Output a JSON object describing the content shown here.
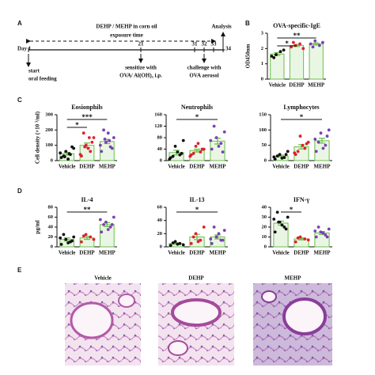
{
  "panel_labels": [
    "A",
    "B",
    "C",
    "D",
    "E"
  ],
  "panel_a": {
    "title": "DEHP / MEHP in corn oil",
    "subtitle": "exposure time",
    "end_label": "Analysis",
    "days": [
      "Day 1",
      "21",
      "31",
      "32",
      "33",
      "34"
    ],
    "steps": [
      {
        "line1": "start",
        "line2": "oral feeding"
      },
      {
        "line1": "sensitize with",
        "line2": "OVA/ Al(OH)₃ i.p."
      },
      {
        "line1": "challenge with",
        "line2": "OVA aerosol"
      }
    ]
  },
  "chart_data": [
    {
      "type": "bar",
      "title": "OVA-specific-IgE",
      "ylabel": "OD450nm",
      "categories": [
        "Vehicle",
        "DEHP",
        "MEHP"
      ],
      "values": [
        1.64,
        2.2,
        2.3
      ],
      "errors": [
        0.09,
        0.07,
        0.07
      ],
      "ylim": [
        0,
        3
      ],
      "yticks": [
        0,
        1,
        2,
        3
      ],
      "points": [
        [
          1.5,
          1.8,
          1.6,
          1.9,
          1.4
        ],
        [
          2.1,
          2.3,
          2.2,
          2.0,
          2.4
        ],
        [
          2.3,
          2.2,
          2.5,
          2.4,
          2.1
        ]
      ],
      "point_colors": [
        "#111111",
        "#e0202a",
        "#7b3fb5"
      ],
      "bar_color": "#6abf4b",
      "significance": [
        {
          "between": [
            "Vehicle",
            "MEHP"
          ],
          "label": "**"
        },
        {
          "between": [
            "Vehicle",
            "DEHP"
          ],
          "label": "*"
        }
      ]
    },
    {
      "type": "bar",
      "title": "Eosionphils",
      "ylabel": "Cell density (×10 ³/ml)",
      "categories": [
        "Vehicle",
        "DEHP",
        "MEHP"
      ],
      "values": [
        45,
        100,
        125
      ],
      "errors": [
        9,
        15,
        14
      ],
      "ylim": [
        0,
        300
      ],
      "yticks": [
        0,
        100,
        200,
        300
      ],
      "points": [
        [
          20,
          40,
          60,
          80,
          30,
          10,
          50,
          90,
          25,
          45
        ],
        [
          30,
          60,
          100,
          150,
          180,
          80,
          40,
          120,
          90,
          150
        ],
        [
          60,
          90,
          120,
          150,
          200,
          180,
          100,
          80,
          140,
          130
        ]
      ],
      "point_colors": [
        "#111111",
        "#e0202a",
        "#7b3fb5"
      ],
      "bar_color": "#6abf4b",
      "significance": [
        {
          "between": [
            "Vehicle",
            "MEHP"
          ],
          "label": "***"
        },
        {
          "between": [
            "Vehicle",
            "DEHP"
          ],
          "label": "*"
        }
      ]
    },
    {
      "type": "bar",
      "title": "Neutrophils",
      "categories": [
        "Vehicle",
        "DEHP",
        "MEHP"
      ],
      "values": [
        28,
        35,
        68
      ],
      "errors": [
        8,
        5,
        10
      ],
      "ylim": [
        0,
        160
      ],
      "yticks": [
        0,
        40,
        80,
        120,
        160
      ],
      "points": [
        [
          10,
          20,
          50,
          70,
          15,
          30,
          5,
          25
        ],
        [
          20,
          30,
          50,
          40,
          25,
          60,
          15,
          40
        ],
        [
          40,
          60,
          80,
          100,
          120,
          50,
          70,
          30
        ]
      ],
      "point_colors": [
        "#111111",
        "#e0202a",
        "#7b3fb5"
      ],
      "bar_color": "#6abf4b",
      "significance": [
        {
          "between": [
            "Vehicle",
            "MEHP"
          ],
          "label": "*"
        }
      ]
    },
    {
      "type": "bar",
      "title": "Lymphocytes",
      "categories": [
        "Vehicle",
        "DEHP",
        "MEHP"
      ],
      "values": [
        15,
        45,
        65
      ],
      "errors": [
        3,
        7,
        8
      ],
      "ylim": [
        0,
        150
      ],
      "yticks": [
        0,
        50,
        100,
        150
      ],
      "points": [
        [
          5,
          10,
          20,
          30,
          15,
          8,
          12,
          20
        ],
        [
          20,
          40,
          80,
          60,
          30,
          50,
          25,
          55
        ],
        [
          30,
          50,
          90,
          100,
          60,
          40,
          70,
          80
        ]
      ],
      "point_colors": [
        "#111111",
        "#e0202a",
        "#7b3fb5"
      ],
      "bar_color": "#6abf4b",
      "significance": [
        {
          "between": [
            "Vehicle",
            "MEHP"
          ],
          "label": "*"
        }
      ]
    },
    {
      "type": "bar",
      "title": "IL-4",
      "ylabel": "pg/ml",
      "categories": [
        "Vehicle",
        "DEHP",
        "MEHP"
      ],
      "values": [
        15,
        18,
        45
      ],
      "errors": [
        3,
        3,
        4
      ],
      "ylim": [
        0,
        80
      ],
      "yticks": [
        0,
        20,
        40,
        60,
        80
      ],
      "points": [
        [
          5,
          10,
          15,
          20,
          25,
          8,
          18,
          12
        ],
        [
          10,
          20,
          25,
          15,
          22
        ],
        [
          30,
          40,
          50,
          60,
          45,
          35,
          55,
          45
        ]
      ],
      "point_colors": [
        "#111111",
        "#e0202a",
        "#7b3fb5"
      ],
      "bar_color": "#6abf4b",
      "significance": [
        {
          "between": [
            "Vehicle",
            "MEHP"
          ],
          "label": "**"
        }
      ]
    },
    {
      "type": "bar",
      "title": "IL-13",
      "categories": [
        "Vehicle",
        "DEHP",
        "MEHP"
      ],
      "values": [
        5,
        15,
        15
      ],
      "errors": [
        1,
        4,
        3
      ],
      "ylim": [
        0,
        60
      ],
      "yticks": [
        0,
        20,
        40,
        60
      ],
      "points": [
        [
          2,
          5,
          8,
          3,
          6,
          4
        ],
        [
          5,
          10,
          20,
          30,
          15,
          8
        ],
        [
          5,
          10,
          15,
          25,
          30,
          20,
          12,
          10
        ]
      ],
      "point_colors": [
        "#111111",
        "#e0202a",
        "#7b3fb5"
      ],
      "bar_color": "#6abf4b",
      "significance": [
        {
          "between": [
            "Vehicle",
            "MEHP"
          ],
          "label": "*"
        }
      ]
    },
    {
      "type": "bar",
      "title": "IFN-γ",
      "categories": [
        "Vehicle",
        "DEHP",
        "MEHP"
      ],
      "values": [
        24,
        8,
        14
      ],
      "errors": [
        2,
        1,
        1.5
      ],
      "ylim": [
        0,
        40
      ],
      "yticks": [
        0,
        10,
        20,
        30,
        40
      ],
      "points": [
        [
          15,
          20,
          25,
          30,
          35,
          22,
          28,
          18,
          25
        ],
        [
          5,
          8,
          10,
          7,
          9
        ],
        [
          10,
          12,
          15,
          18,
          20,
          14,
          16,
          10
        ]
      ],
      "point_colors": [
        "#111111",
        "#e0202a",
        "#7b3fb5"
      ],
      "bar_color": "#6abf4b",
      "significance": [
        {
          "between": [
            "Vehicle",
            "DEHP"
          ],
          "label": "*"
        }
      ]
    }
  ],
  "panel_e": {
    "images": [
      "Vehicle",
      "DEHP",
      "MEHP"
    ]
  }
}
